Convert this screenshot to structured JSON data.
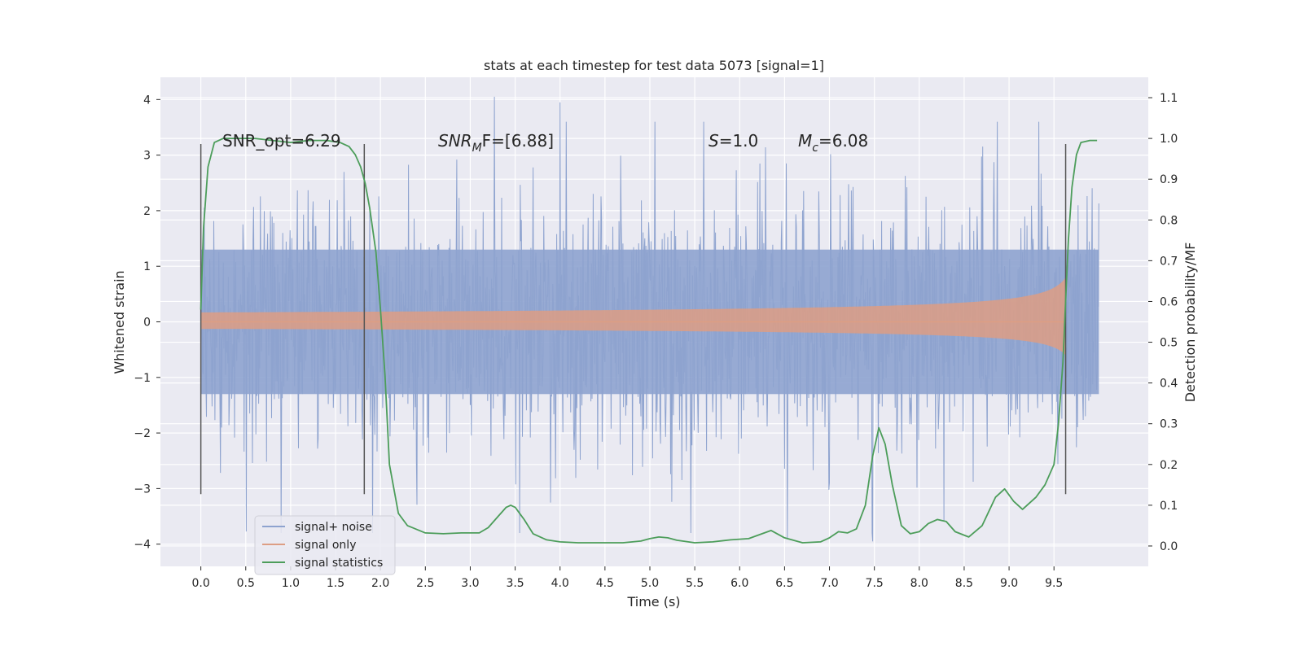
{
  "chart_data": {
    "type": "line",
    "title": "stats at each timestep for test data 5073 [signal=1]",
    "xlabel": "Time (s)",
    "ylabel": "Whitened strain",
    "y2label": "Detection probability/MF",
    "xlim": [
      -0.45,
      10.55
    ],
    "ylim": [
      -4.4,
      4.4
    ],
    "y2lim": [
      -0.05,
      1.15
    ],
    "xticks": [
      0.0,
      0.5,
      1.0,
      1.5,
      2.0,
      2.5,
      3.0,
      3.5,
      4.0,
      4.5,
      5.0,
      5.5,
      6.0,
      6.5,
      7.0,
      7.5,
      8.0,
      8.5,
      9.0,
      9.5
    ],
    "xtick_labels": [
      "0.0",
      "0.5",
      "1.0",
      "1.5",
      "2.0",
      "2.5",
      "3.0",
      "3.5",
      "4.0",
      "4.5",
      "5.0",
      "5.5",
      "6.0",
      "6.5",
      "7.0",
      "7.5",
      "8.0",
      "8.5",
      "9.0",
      "9.5"
    ],
    "yticks": [
      4,
      3,
      2,
      1,
      0,
      -1,
      -2,
      -3,
      -4
    ],
    "ytick_labels": [
      "4",
      "3",
      "2",
      "1",
      "0",
      "−1",
      "−2",
      "−3",
      "−4"
    ],
    "y2ticks": [
      1.1,
      1.0,
      0.9,
      0.8,
      0.7,
      0.6,
      0.5,
      0.4,
      0.3,
      0.2,
      0.1,
      0.0
    ],
    "y2tick_labels": [
      "1.1",
      "1.0",
      "0.9",
      "0.8",
      "0.7",
      "0.6",
      "0.5",
      "0.4",
      "0.3",
      "0.2",
      "0.1",
      "0.0"
    ],
    "grid": true,
    "legend_position": "lower-left",
    "annotations": {
      "snr_opt": "SNR_opt=6.29",
      "snr_mf_main": "SNR",
      "snr_mf_sub": "M",
      "snr_mf_rest": "F=[6.88]",
      "s_main": "S",
      "s_rest": "=1.0",
      "mc_main": "M",
      "mc_sub": "c",
      "mc_rest": "=6.08"
    },
    "vlines": [
      {
        "x": 0.0,
        "ymin": -3.1,
        "ymax": 3.2
      },
      {
        "x": 1.82,
        "ymin": -3.1,
        "ymax": 3.2
      },
      {
        "x": 9.63,
        "ymin": -3.1,
        "ymax": 3.2
      }
    ],
    "series": [
      {
        "name": "signal+ noise",
        "color": "#8ea3cf",
        "kind": "noise",
        "x_range": [
          0.0,
          10.0
        ],
        "band": 1.3,
        "spike_extremes": [
          4.05,
          -3.95
        ]
      },
      {
        "name": "signal only",
        "color": "#dd9e84",
        "kind": "chirp",
        "x_range": [
          0.0,
          9.63
        ],
        "peak_amplitude": 0.8
      },
      {
        "name": "signal statistics",
        "color": "#4c9d5a",
        "kind": "line",
        "x": [
          0.0,
          0.03,
          0.08,
          0.15,
          0.25,
          0.4,
          0.6,
          0.8,
          1.0,
          1.2,
          1.4,
          1.55,
          1.65,
          1.72,
          1.78,
          1.83,
          1.88,
          1.95,
          2.0,
          2.05,
          2.1,
          2.2,
          2.3,
          2.5,
          2.7,
          2.9,
          3.1,
          3.2,
          3.3,
          3.4,
          3.45,
          3.5,
          3.6,
          3.7,
          3.85,
          4.0,
          4.2,
          4.5,
          4.7,
          4.9,
          5.0,
          5.1,
          5.2,
          5.3,
          5.5,
          5.7,
          5.9,
          6.1,
          6.25,
          6.35,
          6.5,
          6.7,
          6.9,
          7.0,
          7.1,
          7.2,
          7.3,
          7.4,
          7.48,
          7.55,
          7.62,
          7.7,
          7.8,
          7.9,
          8.0,
          8.1,
          8.2,
          8.3,
          8.4,
          8.55,
          8.7,
          8.85,
          8.95,
          9.05,
          9.15,
          9.3,
          9.4,
          9.5,
          9.55,
          9.6,
          9.63,
          9.66,
          9.7,
          9.75,
          9.8,
          9.9,
          9.98
        ],
        "y": [
          0.58,
          0.78,
          0.93,
          0.99,
          1.0,
          1.0,
          1.0,
          0.995,
          0.99,
          0.995,
          0.995,
          0.99,
          0.98,
          0.96,
          0.93,
          0.89,
          0.83,
          0.72,
          0.58,
          0.42,
          0.2,
          0.08,
          0.05,
          0.032,
          0.03,
          0.032,
          0.032,
          0.045,
          0.07,
          0.095,
          0.1,
          0.095,
          0.065,
          0.03,
          0.015,
          0.01,
          0.008,
          0.008,
          0.008,
          0.012,
          0.018,
          0.022,
          0.02,
          0.014,
          0.008,
          0.01,
          0.015,
          0.018,
          0.03,
          0.038,
          0.02,
          0.008,
          0.01,
          0.02,
          0.035,
          0.032,
          0.042,
          0.1,
          0.22,
          0.29,
          0.25,
          0.15,
          0.05,
          0.03,
          0.035,
          0.055,
          0.065,
          0.06,
          0.035,
          0.022,
          0.05,
          0.12,
          0.14,
          0.11,
          0.09,
          0.12,
          0.15,
          0.2,
          0.3,
          0.45,
          0.6,
          0.75,
          0.88,
          0.96,
          0.99,
          0.995,
          0.995
        ]
      }
    ]
  }
}
